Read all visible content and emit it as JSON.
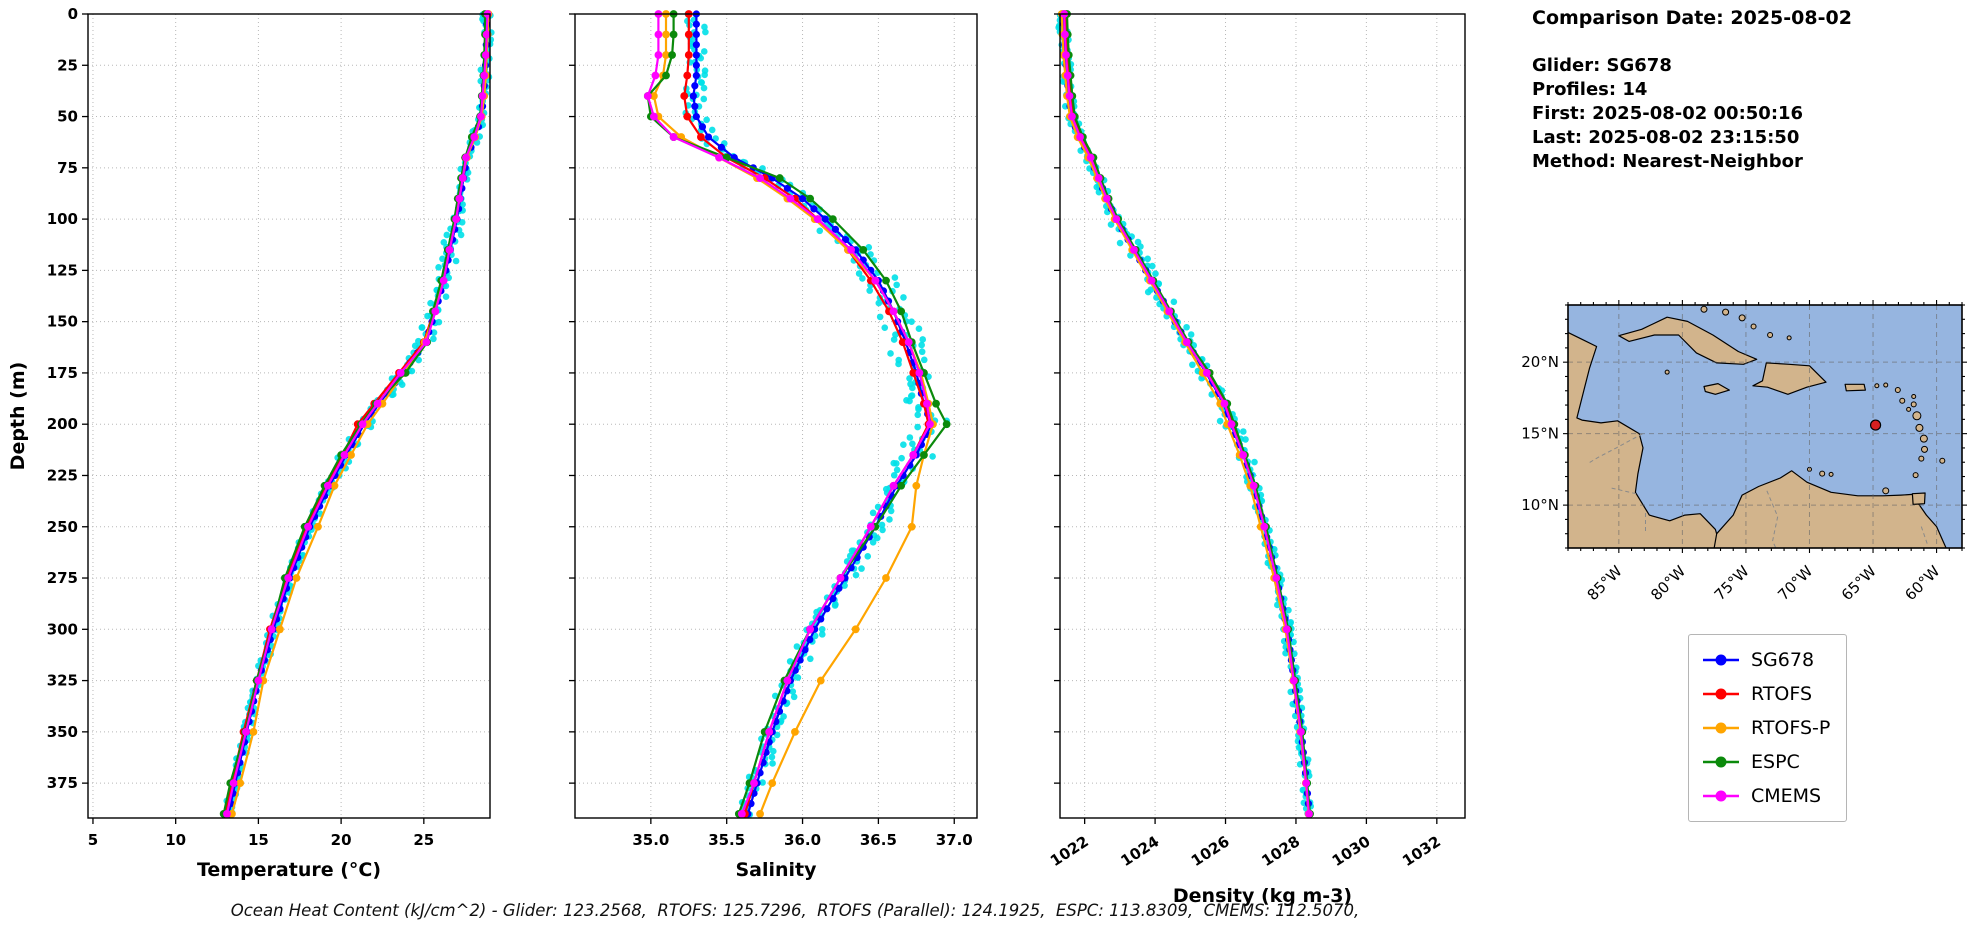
{
  "info_panel": {
    "comparison_date": "Comparison Date: 2025-08-02",
    "glider": "Glider: SG678",
    "profiles": "Profiles: 14",
    "first": "First: 2025-08-02 00:50:16",
    "last": "Last: 2025-08-02 23:15:50",
    "method": "Method: Nearest-Neighbor"
  },
  "caption": "Ocean Heat Content (kJ/cm^2) - Glider: 123.2568,  RTOFS: 125.7296,  RTOFS (Parallel): 124.1925,  ESPC: 113.8309,  CMEMS: 112.5070,",
  "legend": {
    "entries": [
      {
        "label": "SG678",
        "color": "#0000ff"
      },
      {
        "label": "RTOFS",
        "color": "#ff0000"
      },
      {
        "label": "RTOFS-P",
        "color": "#ffa500"
      },
      {
        "label": "ESPC",
        "color": "#0b8a0b"
      },
      {
        "label": "CMEMS",
        "color": "#ff00ff"
      }
    ]
  },
  "chart_data": [
    {
      "type": "line",
      "xlabel": "Temperature (°C)",
      "ylabel": "Depth (m)",
      "xlim": [
        4.7,
        29.0
      ],
      "ylim": [
        0,
        392
      ],
      "xticks": [
        5,
        10,
        15,
        20,
        25
      ],
      "xtick_labels": [
        "5",
        "10",
        "15",
        "20",
        "25"
      ],
      "yticks": [
        0,
        25,
        50,
        75,
        100,
        125,
        150,
        175,
        200,
        225,
        250,
        275,
        300,
        325,
        350,
        375
      ],
      "show_ytick_labels": true,
      "xtick_rotation": 0,
      "grid": true,
      "depths": [
        0,
        10,
        20,
        30,
        40,
        50,
        60,
        70,
        80,
        90,
        100,
        115,
        130,
        145,
        160,
        175,
        190,
        200,
        215,
        230,
        250,
        275,
        300,
        325,
        350,
        375,
        390
      ],
      "series": [
        {
          "name": "SG678",
          "color": "#0000ff",
          "values": [
            28.8,
            28.8,
            28.75,
            28.7,
            28.6,
            28.5,
            28.1,
            27.6,
            27.4,
            27.2,
            27.0,
            26.6,
            26.2,
            25.7,
            25.1,
            23.7,
            22.3,
            21.4,
            20.3,
            19.3,
            18.1,
            16.9,
            15.9,
            15.0,
            14.3,
            13.6,
            13.2
          ]
        },
        {
          "name": "RTOFS",
          "color": "#ff0000",
          "values": [
            28.9,
            28.85,
            28.8,
            28.7,
            28.6,
            28.45,
            28.0,
            27.5,
            27.3,
            27.1,
            26.9,
            26.5,
            26.1,
            25.6,
            25.0,
            23.5,
            22.0,
            21.0,
            20.1,
            19.1,
            17.9,
            16.7,
            15.7,
            14.9,
            14.1,
            13.4,
            13.0
          ]
        },
        {
          "name": "RTOFS-P",
          "color": "#ffa500",
          "values": [
            28.9,
            28.85,
            28.8,
            28.75,
            28.65,
            28.5,
            28.1,
            27.6,
            27.35,
            27.15,
            26.95,
            26.55,
            26.15,
            25.65,
            25.05,
            23.8,
            22.5,
            21.6,
            20.6,
            19.6,
            18.6,
            17.3,
            16.3,
            15.3,
            14.7,
            13.9,
            13.4
          ]
        },
        {
          "name": "ESPC",
          "color": "#0b8a0b",
          "values": [
            28.7,
            28.7,
            28.65,
            28.6,
            28.5,
            28.4,
            27.9,
            27.5,
            27.25,
            27.05,
            26.85,
            26.45,
            26.05,
            25.55,
            25.2,
            23.9,
            22.1,
            21.2,
            20.0,
            19.0,
            17.8,
            16.6,
            15.8,
            14.9,
            14.2,
            13.3,
            12.9
          ]
        },
        {
          "name": "CMEMS",
          "color": "#ff00ff",
          "values": [
            28.85,
            28.8,
            28.75,
            28.65,
            28.55,
            28.45,
            28.05,
            27.55,
            27.35,
            27.15,
            26.95,
            26.55,
            26.2,
            25.7,
            25.15,
            23.6,
            22.2,
            21.3,
            20.2,
            19.2,
            18.0,
            16.8,
            15.8,
            15.0,
            14.25,
            13.5,
            13.1
          ]
        }
      ],
      "scatter": {
        "name": "glider-observations",
        "color": "#00e0e8",
        "jitter": 0.28
      }
    },
    {
      "type": "line",
      "xlabel": "Salinity",
      "ylabel": "",
      "xlim": [
        34.5,
        37.15
      ],
      "ylim": [
        0,
        392
      ],
      "xticks": [
        35.0,
        35.5,
        36.0,
        36.5,
        37.0
      ],
      "xtick_labels": [
        "35.0",
        "35.5",
        "36.0",
        "36.5",
        "37.0"
      ],
      "yticks": [
        0,
        25,
        50,
        75,
        100,
        125,
        150,
        175,
        200,
        225,
        250,
        275,
        300,
        325,
        350,
        375
      ],
      "show_ytick_labels": false,
      "xtick_rotation": 0,
      "grid": true,
      "depths": [
        0,
        10,
        20,
        30,
        40,
        50,
        60,
        70,
        80,
        90,
        100,
        115,
        130,
        145,
        160,
        175,
        190,
        200,
        215,
        230,
        250,
        275,
        300,
        325,
        350,
        375,
        390
      ],
      "series": [
        {
          "name": "SG678",
          "color": "#0000ff",
          "values": [
            35.3,
            35.3,
            35.3,
            35.3,
            35.28,
            35.3,
            35.38,
            35.55,
            35.8,
            36.0,
            36.15,
            36.35,
            36.5,
            36.6,
            36.68,
            36.75,
            36.8,
            36.85,
            36.75,
            36.62,
            36.48,
            36.28,
            36.08,
            35.92,
            35.8,
            35.7,
            35.64
          ]
        },
        {
          "name": "RTOFS",
          "color": "#ff0000",
          "values": [
            35.25,
            35.25,
            35.25,
            35.24,
            35.22,
            35.24,
            35.33,
            35.5,
            35.75,
            35.95,
            36.1,
            36.3,
            36.45,
            36.57,
            36.66,
            36.73,
            36.8,
            36.83,
            36.73,
            36.6,
            36.45,
            36.25,
            36.05,
            35.9,
            35.78,
            35.68,
            35.62
          ]
        },
        {
          "name": "RTOFS-P",
          "color": "#ffa500",
          "values": [
            35.1,
            35.1,
            35.1,
            35.08,
            35.02,
            35.05,
            35.2,
            35.45,
            35.7,
            35.9,
            36.08,
            36.3,
            36.48,
            36.6,
            36.7,
            36.78,
            36.83,
            36.86,
            36.8,
            36.75,
            36.72,
            36.55,
            36.35,
            36.12,
            35.95,
            35.8,
            35.72
          ]
        },
        {
          "name": "ESPC",
          "color": "#0b8a0b",
          "values": [
            35.15,
            35.15,
            35.14,
            35.1,
            34.98,
            35.0,
            35.15,
            35.5,
            35.85,
            36.05,
            36.2,
            36.4,
            36.55,
            36.65,
            36.72,
            36.8,
            36.88,
            36.95,
            36.8,
            36.65,
            36.48,
            36.25,
            36.05,
            35.88,
            35.75,
            35.65,
            35.58
          ]
        },
        {
          "name": "CMEMS",
          "color": "#ff00ff",
          "values": [
            35.05,
            35.05,
            35.05,
            35.03,
            34.98,
            35.02,
            35.15,
            35.45,
            35.72,
            35.92,
            36.1,
            36.32,
            36.48,
            36.6,
            36.7,
            36.77,
            36.82,
            36.84,
            36.73,
            36.6,
            36.45,
            36.25,
            36.05,
            35.9,
            35.78,
            35.68,
            35.6
          ]
        }
      ],
      "scatter": {
        "name": "glider-observations",
        "color": "#00e0e8",
        "jitter": 0.07
      }
    },
    {
      "type": "line",
      "xlabel": "Density (kg m-3)",
      "ylabel": "",
      "xlim": [
        1021.3,
        1032.8
      ],
      "ylim": [
        0,
        392
      ],
      "xticks": [
        1022,
        1024,
        1026,
        1028,
        1030,
        1032
      ],
      "xtick_labels": [
        "1022",
        "1024",
        "1026",
        "1028",
        "1030",
        "1032"
      ],
      "yticks": [
        0,
        25,
        50,
        75,
        100,
        125,
        150,
        175,
        200,
        225,
        250,
        275,
        300,
        325,
        350,
        375
      ],
      "show_ytick_labels": false,
      "xtick_rotation": -33,
      "grid": true,
      "depths": [
        0,
        10,
        20,
        30,
        40,
        50,
        60,
        70,
        80,
        90,
        100,
        115,
        130,
        145,
        160,
        175,
        190,
        200,
        215,
        230,
        250,
        275,
        300,
        325,
        350,
        375,
        390
      ],
      "series": [
        {
          "name": "SG678",
          "color": "#0000ff",
          "values": [
            1021.4,
            1021.42,
            1021.45,
            1021.5,
            1021.55,
            1021.62,
            1021.85,
            1022.15,
            1022.4,
            1022.62,
            1022.9,
            1023.4,
            1023.9,
            1024.4,
            1024.9,
            1025.45,
            1025.95,
            1026.15,
            1026.5,
            1026.8,
            1027.1,
            1027.45,
            1027.75,
            1027.95,
            1028.15,
            1028.3,
            1028.38
          ]
        },
        {
          "name": "RTOFS",
          "color": "#ff0000",
          "values": [
            1021.45,
            1021.47,
            1021.5,
            1021.55,
            1021.6,
            1021.67,
            1021.9,
            1022.2,
            1022.42,
            1022.65,
            1022.92,
            1023.42,
            1023.92,
            1024.42,
            1024.92,
            1025.5,
            1026.0,
            1026.2,
            1026.52,
            1026.82,
            1027.12,
            1027.46,
            1027.76,
            1027.96,
            1028.16,
            1028.31,
            1028.39
          ]
        },
        {
          "name": "RTOFS-P",
          "color": "#ffa500",
          "values": [
            1021.35,
            1021.37,
            1021.4,
            1021.45,
            1021.5,
            1021.58,
            1021.8,
            1022.1,
            1022.35,
            1022.58,
            1022.85,
            1023.35,
            1023.85,
            1024.35,
            1024.85,
            1025.35,
            1025.85,
            1026.05,
            1026.4,
            1026.7,
            1027.0,
            1027.38,
            1027.7,
            1027.92,
            1028.12,
            1028.28,
            1028.36
          ]
        },
        {
          "name": "ESPC",
          "color": "#0b8a0b",
          "values": [
            1021.5,
            1021.52,
            1021.55,
            1021.6,
            1021.65,
            1021.72,
            1021.95,
            1022.25,
            1022.45,
            1022.68,
            1022.95,
            1023.45,
            1023.95,
            1024.45,
            1024.95,
            1025.55,
            1026.05,
            1026.25,
            1026.55,
            1026.85,
            1027.15,
            1027.48,
            1027.78,
            1027.98,
            1028.18,
            1028.32,
            1028.4
          ]
        },
        {
          "name": "CMEMS",
          "color": "#ff00ff",
          "values": [
            1021.42,
            1021.44,
            1021.47,
            1021.52,
            1021.57,
            1021.64,
            1021.87,
            1022.17,
            1022.4,
            1022.63,
            1022.9,
            1023.4,
            1023.9,
            1024.4,
            1024.9,
            1025.47,
            1025.97,
            1026.17,
            1026.5,
            1026.8,
            1027.1,
            1027.44,
            1027.74,
            1027.94,
            1028.14,
            1028.29,
            1028.37
          ]
        }
      ],
      "scatter": {
        "name": "glider-observations",
        "color": "#00e0e8",
        "jitter": 0.15
      }
    }
  ],
  "map": {
    "ocean_color": "#96b5e0",
    "land_color": "#d2b48c",
    "lat_ticks": [
      {
        "value": 20,
        "label": "20°N"
      },
      {
        "value": 15,
        "label": "15°N"
      },
      {
        "value": 10,
        "label": "10°N"
      }
    ],
    "lon_ticks": [
      {
        "value": -85,
        "label": "85°W"
      },
      {
        "value": -80,
        "label": "80°W"
      },
      {
        "value": -75,
        "label": "75°W"
      },
      {
        "value": -70,
        "label": "70°W"
      },
      {
        "value": -65,
        "label": "65°W"
      },
      {
        "value": -60,
        "label": "60°W"
      }
    ],
    "marker": {
      "name": "glider-position-marker",
      "lon": -64.8,
      "lat": 15.6,
      "color": "#d62020"
    }
  }
}
